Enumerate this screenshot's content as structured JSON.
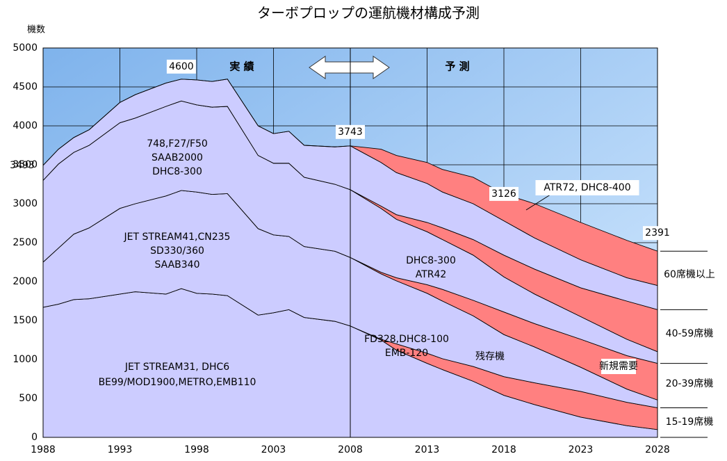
{
  "chart_data": {
    "type": "stacked_area",
    "title": "ターボプロップの運航機材構成予測",
    "y_label": "機数",
    "x": [
      1988,
      1989,
      1990,
      1991,
      1993,
      1994,
      1996,
      1997,
      1998,
      1999,
      2000,
      2002,
      2003,
      2004,
      2005,
      2007,
      2008,
      2010,
      2011,
      2013,
      2014,
      2016,
      2018,
      2020,
      2023,
      2026,
      2028
    ],
    "xlim": [
      1988,
      2028
    ],
    "xticks": [
      1988,
      1993,
      1998,
      2003,
      2008,
      2013,
      2018,
      2023,
      2028
    ],
    "ylim": [
      0,
      5000
    ],
    "yticks": [
      0,
      500,
      1000,
      1500,
      2000,
      2500,
      3000,
      3500,
      4000,
      4500,
      5000
    ],
    "grid": true,
    "series": [
      {
        "color": "#ccccff",
        "values": [
          1670,
          1710,
          1770,
          1780,
          1840,
          1870,
          1840,
          1910,
          1850,
          1840,
          1820,
          1570,
          1600,
          1640,
          1540,
          1490,
          1430,
          1250,
          1120,
          950,
          870,
          720,
          540,
          420,
          260,
          150,
          100
        ]
      },
      {
        "color": "#ff8080",
        "values": [
          0,
          0,
          0,
          0,
          0,
          0,
          0,
          0,
          0,
          0,
          0,
          0,
          0,
          0,
          0,
          0,
          0,
          10,
          80,
          130,
          140,
          190,
          240,
          280,
          330,
          300,
          280
        ]
      },
      {
        "color": "#ccccff",
        "values": [
          580,
          720,
          840,
          910,
          1100,
          1130,
          1260,
          1260,
          1300,
          1280,
          1310,
          1110,
          1000,
          940,
          910,
          900,
          880,
          840,
          810,
          770,
          740,
          650,
          540,
          460,
          310,
          170,
          100
        ]
      },
      {
        "color": "#ff8080",
        "values": [
          0,
          0,
          0,
          0,
          0,
          0,
          0,
          0,
          0,
          0,
          0,
          0,
          0,
          0,
          0,
          0,
          0,
          20,
          40,
          110,
          150,
          200,
          290,
          300,
          360,
          430,
          470
        ]
      },
      {
        "color": "#ccccff",
        "values": [
          1050,
          1080,
          1050,
          1060,
          1100,
          1100,
          1150,
          1150,
          1120,
          1120,
          1120,
          940,
          920,
          940,
          890,
          860,
          870,
          820,
          750,
          680,
          640,
          580,
          450,
          380,
          290,
          210,
          150
        ]
      },
      {
        "color": "#ff8080",
        "values": [
          0,
          0,
          0,
          0,
          0,
          0,
          0,
          0,
          0,
          0,
          0,
          0,
          0,
          0,
          0,
          0,
          0,
          30,
          60,
          120,
          150,
          200,
          280,
          320,
          370,
          490,
          540
        ]
      },
      {
        "color": "#ccccff",
        "values": [
          193,
          190,
          190,
          200,
          260,
          300,
          300,
          280,
          320,
          330,
          350,
          380,
          380,
          410,
          410,
          480,
          563,
          560,
          540,
          500,
          460,
          460,
          440,
          400,
          360,
          300,
          310
        ]
      },
      {
        "color": "#ff8080",
        "values": [
          0,
          0,
          0,
          0,
          0,
          0,
          0,
          0,
          0,
          0,
          0,
          0,
          0,
          0,
          0,
          0,
          0,
          170,
          220,
          270,
          290,
          340,
          346,
          440,
          480,
          480,
          441
        ]
      }
    ],
    "total_labels": [
      {
        "x": 1988,
        "value": 3493
      },
      {
        "x": 1997,
        "value": 4600
      },
      {
        "x": 2008,
        "value": 3743
      },
      {
        "x": 2018,
        "value": 3126
      },
      {
        "x": 2028,
        "value": 2391
      }
    ],
    "period_labels": [
      "実 績",
      "予 測"
    ],
    "annotations": [
      [
        "748,F27/F50",
        "SAAB2000",
        "DHC8-300"
      ],
      [
        "JET STREAM41,CN235",
        "SD330/360",
        "SAAB340"
      ],
      [
        "JET STREAM31, DHC6",
        "BE99/MOD1900,METRO,EMB110"
      ],
      [
        "ATR72, DHC8-400"
      ],
      [
        "DHC8-300",
        "ATR42"
      ],
      [
        "FD328,DHC8-100",
        "EMB-120"
      ],
      [
        "残存機"
      ],
      [
        "新規需要"
      ]
    ],
    "group_labels": [
      "60席機以上",
      "40-59席機",
      "20-39席機",
      "15-19席機"
    ]
  }
}
